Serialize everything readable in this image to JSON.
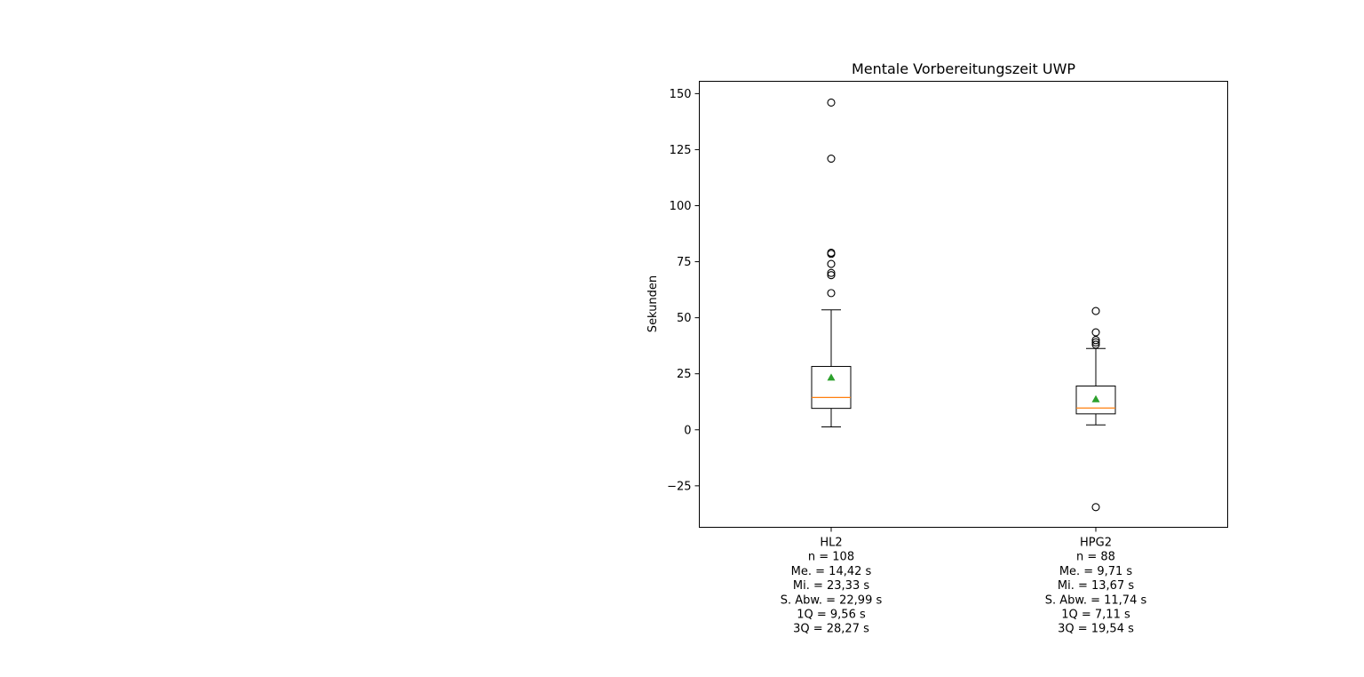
{
  "chart_data": {
    "type": "box",
    "title": "Mentale Vorbereitungszeit UWP",
    "xlabel": "",
    "ylabel": "Sekunden",
    "ylim": [
      -43.5,
      155.5
    ],
    "yticks": [
      -25,
      0,
      25,
      50,
      75,
      100,
      125,
      150
    ],
    "ytick_labels": [
      "−25",
      "0",
      "25",
      "50",
      "75",
      "100",
      "125",
      "150"
    ],
    "grid": false,
    "colors": {
      "box": "#000000",
      "median": "#ff7f0e",
      "mean": "#2ca02c",
      "outlier": "#000000"
    },
    "series": [
      {
        "name": "HL2",
        "category_lines": [
          "HL2",
          "n = 108",
          "Me. = 14,42 s",
          "Mi. = 23,33 s",
          "S. Abw. = 22,99 s",
          "1Q = 9,56 s",
          "3Q = 28,27 s"
        ],
        "whisker_low": 1.3,
        "q1": 9.56,
        "median": 14.42,
        "q3": 28.27,
        "whisker_high": 53.5,
        "mean": 23.33,
        "outliers": [
          146,
          121,
          79,
          78.5,
          74,
          70,
          69,
          61
        ]
      },
      {
        "name": "HPG2",
        "category_lines": [
          "HPG2",
          "n = 88",
          "Me. = 9,71 s",
          "Mi. = 13,67 s",
          "S. Abw. = 11,74 s",
          "1Q = 7,11 s",
          "3Q = 19,54 s"
        ],
        "whisker_low": 2.2,
        "q1": 7.11,
        "median": 9.71,
        "q3": 19.54,
        "whisker_high": 36.3,
        "mean": 13.67,
        "outliers": [
          53,
          43.5,
          40,
          39,
          38,
          -34.5
        ]
      }
    ]
  }
}
